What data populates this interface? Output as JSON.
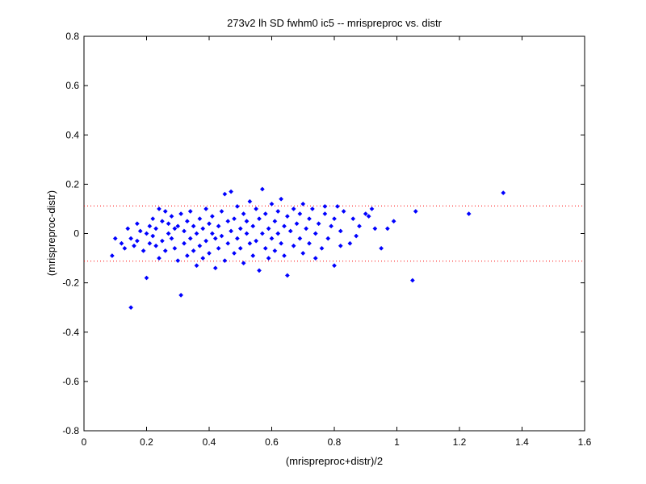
{
  "chart_data": {
    "type": "scatter",
    "title": "273v2 lh SD fwhm0 ic5 -- mrispreproc vs. distr",
    "xlabel": "(mrispreproc+distr)/2",
    "ylabel": "(mrispreproc-distr)",
    "xlim": [
      0,
      1.6
    ],
    "ylim": [
      -0.8,
      0.8
    ],
    "xticks": [
      0,
      0.2,
      0.4,
      0.6,
      0.8,
      1,
      1.2,
      1.4,
      1.6
    ],
    "xtick_labels": [
      "0",
      "0.2",
      "0.4",
      "0.6",
      "0.8",
      "1",
      "1.2",
      "1.4",
      "1.6"
    ],
    "yticks": [
      -0.8,
      -0.6,
      -0.4,
      -0.2,
      0,
      0.2,
      0.4,
      0.6,
      0.8
    ],
    "ytick_labels": [
      "-0.8",
      "-0.6",
      "-0.4",
      "-0.2",
      "0",
      "0.2",
      "0.4",
      "0.6",
      "0.8"
    ],
    "grid": false,
    "colors": {
      "points": "#0000ff",
      "reference_lines": "#ff0000",
      "axes": "#000000"
    },
    "reference_lines_y": [
      0.112,
      -0.112
    ],
    "series": [
      {
        "marker": "diamond",
        "points": [
          [
            0.09,
            -0.09
          ],
          [
            0.1,
            -0.02
          ],
          [
            0.12,
            -0.04
          ],
          [
            0.13,
            -0.06
          ],
          [
            0.14,
            0.02
          ],
          [
            0.15,
            -0.3
          ],
          [
            0.15,
            -0.02
          ],
          [
            0.16,
            -0.05
          ],
          [
            0.17,
            0.04
          ],
          [
            0.17,
            -0.03
          ],
          [
            0.18,
            0.01
          ],
          [
            0.19,
            -0.07
          ],
          [
            0.2,
            -0.18
          ],
          [
            0.2,
            0.0
          ],
          [
            0.21,
            0.03
          ],
          [
            0.21,
            -0.04
          ],
          [
            0.22,
            -0.01
          ],
          [
            0.22,
            0.06
          ],
          [
            0.23,
            -0.05
          ],
          [
            0.23,
            0.02
          ],
          [
            0.24,
            0.1
          ],
          [
            0.24,
            -0.1
          ],
          [
            0.25,
            -0.03
          ],
          [
            0.25,
            0.05
          ],
          [
            0.26,
            0.09
          ],
          [
            0.26,
            -0.07
          ],
          [
            0.27,
            0.0
          ],
          [
            0.27,
            0.04
          ],
          [
            0.28,
            -0.02
          ],
          [
            0.28,
            0.07
          ],
          [
            0.29,
            -0.06
          ],
          [
            0.29,
            0.02
          ],
          [
            0.3,
            -0.11
          ],
          [
            0.3,
            0.03
          ],
          [
            0.31,
            -0.25
          ],
          [
            0.31,
            0.08
          ],
          [
            0.32,
            -0.04
          ],
          [
            0.32,
            0.01
          ],
          [
            0.33,
            -0.09
          ],
          [
            0.33,
            0.05
          ],
          [
            0.34,
            -0.02
          ],
          [
            0.34,
            0.09
          ],
          [
            0.35,
            -0.07
          ],
          [
            0.35,
            0.03
          ],
          [
            0.36,
            -0.13
          ],
          [
            0.36,
            0.0
          ],
          [
            0.37,
            0.06
          ],
          [
            0.37,
            -0.05
          ],
          [
            0.38,
            0.02
          ],
          [
            0.38,
            -0.1
          ],
          [
            0.39,
            0.1
          ],
          [
            0.39,
            -0.03
          ],
          [
            0.4,
            0.04
          ],
          [
            0.4,
            -0.08
          ],
          [
            0.41,
            0.0
          ],
          [
            0.41,
            0.07
          ],
          [
            0.42,
            -0.02
          ],
          [
            0.42,
            -0.14
          ],
          [
            0.43,
            0.03
          ],
          [
            0.43,
            -0.06
          ],
          [
            0.44,
            0.09
          ],
          [
            0.44,
            -0.01
          ],
          [
            0.45,
            0.16
          ],
          [
            0.45,
            -0.11
          ],
          [
            0.46,
            0.05
          ],
          [
            0.46,
            -0.04
          ],
          [
            0.47,
            0.17
          ],
          [
            0.47,
            0.01
          ],
          [
            0.48,
            -0.08
          ],
          [
            0.48,
            0.06
          ],
          [
            0.49,
            -0.02
          ],
          [
            0.49,
            0.11
          ],
          [
            0.5,
            -0.06
          ],
          [
            0.5,
            0.02
          ],
          [
            0.51,
            0.08
          ],
          [
            0.51,
            -0.12
          ],
          [
            0.52,
            0.0
          ],
          [
            0.52,
            0.05
          ],
          [
            0.53,
            -0.04
          ],
          [
            0.53,
            0.13
          ],
          [
            0.54,
            -0.09
          ],
          [
            0.54,
            0.03
          ],
          [
            0.55,
            0.1
          ],
          [
            0.55,
            -0.03
          ],
          [
            0.56,
            0.06
          ],
          [
            0.56,
            -0.15
          ],
          [
            0.57,
            0.18
          ],
          [
            0.57,
            0.0
          ],
          [
            0.58,
            -0.06
          ],
          [
            0.58,
            0.08
          ],
          [
            0.59,
            0.02
          ],
          [
            0.59,
            -0.1
          ],
          [
            0.6,
            0.12
          ],
          [
            0.6,
            -0.02
          ],
          [
            0.61,
            0.05
          ],
          [
            0.61,
            -0.07
          ],
          [
            0.62,
            0.09
          ],
          [
            0.62,
            0.0
          ],
          [
            0.63,
            -0.04
          ],
          [
            0.63,
            0.14
          ],
          [
            0.64,
            0.03
          ],
          [
            0.64,
            -0.09
          ],
          [
            0.65,
            0.07
          ],
          [
            0.65,
            -0.17
          ],
          [
            0.66,
            0.01
          ],
          [
            0.67,
            0.1
          ],
          [
            0.67,
            -0.05
          ],
          [
            0.68,
            0.04
          ],
          [
            0.69,
            -0.02
          ],
          [
            0.69,
            0.08
          ],
          [
            0.7,
            -0.08
          ],
          [
            0.7,
            0.12
          ],
          [
            0.71,
            0.02
          ],
          [
            0.72,
            -0.04
          ],
          [
            0.72,
            0.06
          ],
          [
            0.73,
            0.1
          ],
          [
            0.74,
            -0.1
          ],
          [
            0.74,
            0.0
          ],
          [
            0.75,
            0.04
          ],
          [
            0.76,
            -0.06
          ],
          [
            0.77,
            0.08
          ],
          [
            0.77,
            0.11
          ],
          [
            0.78,
            -0.02
          ],
          [
            0.79,
            0.03
          ],
          [
            0.8,
            -0.13
          ],
          [
            0.8,
            0.06
          ],
          [
            0.81,
            0.11
          ],
          [
            0.82,
            -0.05
          ],
          [
            0.82,
            0.01
          ],
          [
            0.83,
            0.09
          ],
          [
            0.85,
            -0.04
          ],
          [
            0.86,
            0.06
          ],
          [
            0.87,
            -0.01
          ],
          [
            0.88,
            0.03
          ],
          [
            0.9,
            0.08
          ],
          [
            0.91,
            0.07
          ],
          [
            0.92,
            0.1
          ],
          [
            0.93,
            0.02
          ],
          [
            0.95,
            -0.06
          ],
          [
            0.97,
            0.02
          ],
          [
            0.99,
            0.05
          ],
          [
            1.05,
            -0.19
          ],
          [
            1.06,
            0.09
          ],
          [
            1.23,
            0.08
          ],
          [
            1.34,
            0.165
          ]
        ]
      }
    ]
  }
}
